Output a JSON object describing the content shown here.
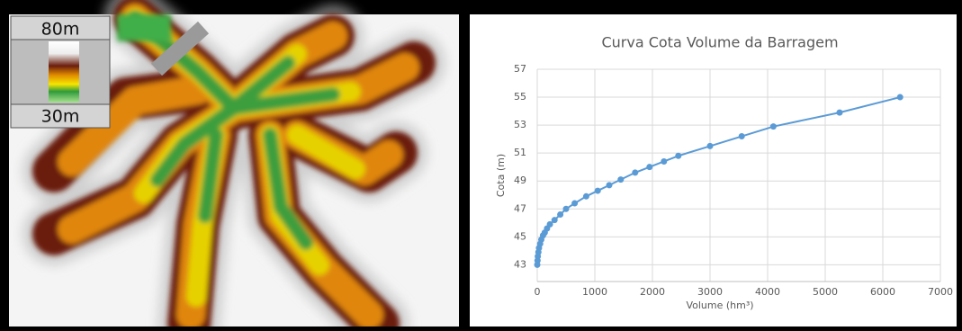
{
  "map_legend": {
    "top": "80m",
    "bottom": "30m"
  },
  "chart_data": {
    "type": "line",
    "title": "Curva Cota Volume da Barragem",
    "x_label": "Volume (hm³)",
    "y_label": "Cota (m)",
    "x": [
      0,
      5,
      10,
      20,
      30,
      50,
      70,
      100,
      130,
      170,
      220,
      300,
      400,
      500,
      650,
      850,
      1050,
      1250,
      1450,
      1700,
      1950,
      2200,
      2450,
      3000,
      3550,
      4100,
      5250,
      6300
    ],
    "series": [
      {
        "color": "#5b9bd5",
        "values": [
          43.0,
          43.3,
          43.6,
          43.9,
          44.2,
          44.5,
          44.8,
          45.1,
          45.3,
          45.6,
          45.9,
          46.2,
          46.6,
          47.0,
          47.4,
          47.9,
          48.3,
          48.7,
          49.1,
          49.6,
          50.0,
          50.4,
          50.8,
          51.5,
          52.2,
          52.9,
          53.9,
          55.0
        ]
      }
    ],
    "xlim": [
      0,
      7000
    ],
    "xticks": [
      0,
      1000,
      2000,
      3000,
      4000,
      5000,
      6000,
      7000
    ],
    "ylim": [
      41.8,
      57
    ],
    "yticks": [
      43,
      45,
      47,
      49,
      51,
      53,
      55,
      57
    ],
    "grid": true
  }
}
